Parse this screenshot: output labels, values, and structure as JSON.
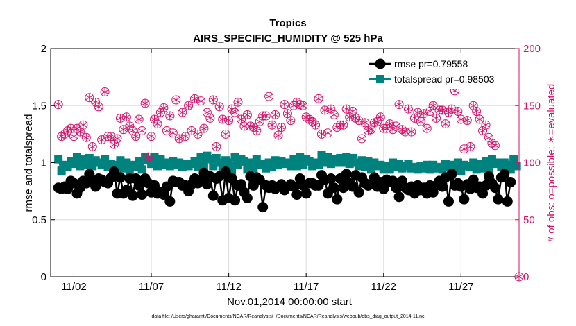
{
  "chart_data": {
    "type": "line",
    "title": "Tropics",
    "subtitle": "AIRS_SPECIFIC_HUMIDITY @ 525 hPa",
    "xlabel": "Nov.01,2014 00:00:00 start",
    "ylabel_left": "rmse and totalspread",
    "ylabel_right": "# of obs: o=possible; ∗=evaluated",
    "footnote": "data file: /Users/gharamti/Documents/NCAR/Reanalysis/~/Documents/NCAR/Reanalysis/webpub/obs_diag_output_2014-11.nc",
    "xlim": [
      0.5,
      30.75
    ],
    "ylim_left": [
      0,
      2
    ],
    "ylim_right": [
      0,
      200
    ],
    "x_ticks": [
      2,
      7,
      12,
      17,
      22,
      27
    ],
    "x_tick_labels": [
      "11/02",
      "11/07",
      "11/12",
      "11/17",
      "11/22",
      "11/27"
    ],
    "y_left_ticks": [
      "0",
      "0.5",
      "1",
      "1.5",
      "2"
    ],
    "y_right_ticks": [
      "0",
      "50",
      "100",
      "150",
      "200"
    ],
    "colors": {
      "rmse": "#000000",
      "totalspread": "#00837e",
      "obs": "#d1136a",
      "grid": "#dcdcdc"
    },
    "series": [
      {
        "name": "rmse",
        "legend": "rmse pr=0.79558",
        "values": [
          0.78,
          0.77,
          0.79,
          0.77,
          0.84,
          0.82,
          0.73,
          0.78,
          0.84,
          0.82,
          0.9,
          0.83,
          0.79,
          0.86,
          0.85,
          0.83,
          0.82,
          0.87,
          0.92,
          0.73,
          0.87,
          0.73,
          0.76,
          0.86,
          0.71,
          0.86,
          0.8,
          0.72,
          0.86,
          0.82,
          0.74,
          0.8,
          0.73,
          0.74,
          0.72,
          0.79,
          0.66,
          0.84,
          0.83,
          0.83,
          0.8,
          0.8,
          0.75,
          0.81,
          0.86,
          0.82,
          0.85,
          0.91,
          0.81,
          0.88,
          0.71,
          0.86,
          0.88,
          0.67,
          0.92,
          0.69,
          0.86,
          0.67,
          0.8,
          0.81,
          0.74,
          0.69,
          0.88,
          0.8,
          0.87,
          0.85,
          0.61,
          0.8,
          0.78,
          0.8,
          0.77,
          0.79,
          0.81,
          0.76,
          0.79,
          0.81,
          0.79,
          0.72,
          0.86,
          0.8,
          0.73,
          0.82,
          0.82,
          0.8,
          0.8,
          0.89,
          0.85,
          0.73,
          0.86,
          0.78,
          0.68,
          0.86,
          0.78,
          0.9,
          0.82,
          0.79,
          0.89,
          0.74,
          0.87,
          0.82,
          0.8,
          0.81,
          0.87,
          0.79,
          0.83,
          0.77,
          0.85,
          0.83,
          0.84,
          0.78,
          0.7,
          0.84,
          0.78,
          0.76,
          0.79,
          0.73,
          0.8,
          0.76,
          0.78,
          0.73,
          0.8,
          0.74,
          0.8,
          0.84,
          0.79,
          0.87,
          0.66,
          0.9,
          0.8,
          0.82,
          0.79,
          0.68,
          0.81,
          0.77,
          0.85,
          0.78,
          0.79,
          0.73,
          0.8,
          0.88,
          0.82,
          0.78,
          0.68,
          0.87,
          0.9,
          0.66,
          0.83
        ]
      },
      {
        "name": "totalspread",
        "legend": "totalspread pr=0.98503",
        "values": [
          1.03,
          0.93,
          0.98,
          0.96,
          1.01,
          0.99,
          1.05,
          0.97,
          1.03,
          0.98,
          1.04,
          0.97,
          1.02,
          1.0,
          0.98,
          1.03,
          0.96,
          0.99,
          0.98,
          0.96,
          1.02,
          0.95,
          1.0,
          0.91,
          0.98,
          0.96,
          1.01,
          0.94,
          1.05,
          1.02,
          0.99,
          1.05,
          0.97,
          1.03,
          0.98,
          1.0,
          0.97,
          1.01,
          0.98,
          1.0,
          0.96,
          0.99,
          0.97,
          0.99,
          1.01,
          0.96,
          1.05,
          0.98,
          1.06,
          1.03,
          0.97,
          1.04,
          1.0,
          0.96,
          1.02,
          1.0,
          0.93,
          1.05,
          0.98,
          1.03,
          1.01,
          0.94,
          1.0,
          0.95,
          1.03,
          0.98,
          0.99,
          0.95,
          1.0,
          0.96,
          1.02,
          0.98,
          1.01,
          0.99,
          1.0,
          0.97,
          1.03,
          0.97,
          1.05,
          0.98,
          1.03,
          1.01,
          0.97,
          1.0,
          0.98,
          1.07,
          1.0,
          1.05,
          0.99,
          1.03,
          1.0,
          1.04,
          1.0,
          1.05,
          0.99,
          1.04,
          1.0,
          0.97,
          1.02,
          0.96,
          1.01,
          0.94,
          1.0,
          0.97,
          0.98,
          0.94,
          0.97,
          0.94,
          1.0,
          0.96,
          0.99,
          0.95,
          0.97,
          0.99,
          0.95,
          0.96,
          0.94,
          0.97,
          0.95,
          0.98,
          0.94,
          0.98,
          0.95,
          0.96,
          0.94,
          0.99,
          0.96,
          0.98,
          0.95,
          1.0,
          0.93,
          0.98,
          0.97,
          0.96,
          1.0,
          0.94,
          0.99,
          0.95,
          1.01,
          0.95,
          1.03,
          0.99,
          1.0,
          0.96,
          1.0,
          0.98,
          0.94,
          1.03,
          0.97
        ]
      },
      {
        "name": "obs_possible",
        "legend": "",
        "values": [
          151,
          123,
          125,
          128,
          130,
          123,
          130,
          127,
          133,
          122,
          157,
          114,
          153,
          149,
          120,
          162,
          123,
          123,
          116,
          121,
          139,
          129,
          140,
          132,
          128,
          123,
          138,
          128,
          152,
          105,
          123,
          138,
          134,
          144,
          148,
          128,
          141,
          126,
          155,
          121,
          144,
          123,
          150,
          128,
          156,
          125,
          154,
          130,
          144,
          139,
          155,
          114,
          149,
          138,
          125,
          137,
          147,
          144,
          153,
          138,
          132,
          142,
          132,
          131,
          128,
          136,
          141,
          141,
          158,
          133,
          142,
          124,
          131,
          151,
          143,
          137,
          150,
          153,
          151,
          150,
          140,
          138,
          136,
          133,
          156,
          125,
          146,
          126,
          147,
          142,
          131,
          133,
          133,
          147,
          140,
          145,
          139,
          137,
          121,
          135,
          128,
          129,
          135,
          136,
          140,
          130,
          130,
          134,
          129,
          132,
          151,
          129,
          127,
          147,
          127,
          139,
          144,
          136,
          143,
          130,
          145,
          150,
          139,
          146,
          146,
          134,
          144,
          147,
          163,
          145,
          138,
          112,
          137,
          114,
          150,
          145,
          138,
          128,
          133,
          122,
          117,
          115
        ]
      },
      {
        "name": "obs_evaluated",
        "legend": "",
        "values": [
          151,
          123,
          125,
          128,
          130,
          123,
          130,
          127,
          133,
          122,
          157,
          114,
          153,
          149,
          120,
          162,
          123,
          123,
          116,
          121,
          139,
          129,
          140,
          132,
          128,
          123,
          138,
          128,
          152,
          105,
          123,
          138,
          134,
          144,
          148,
          128,
          141,
          126,
          155,
          121,
          144,
          123,
          150,
          128,
          156,
          125,
          154,
          130,
          144,
          139,
          155,
          114,
          149,
          138,
          125,
          137,
          147,
          144,
          153,
          138,
          132,
          142,
          132,
          131,
          128,
          136,
          141,
          141,
          158,
          133,
          142,
          124,
          131,
          151,
          143,
          137,
          150,
          153,
          151,
          150,
          140,
          138,
          136,
          133,
          156,
          125,
          146,
          126,
          147,
          142,
          131,
          133,
          133,
          147,
          140,
          145,
          139,
          137,
          121,
          135,
          128,
          129,
          135,
          136,
          140,
          130,
          130,
          134,
          129,
          132,
          151,
          129,
          127,
          147,
          127,
          139,
          144,
          136,
          143,
          130,
          145,
          150,
          139,
          146,
          146,
          134,
          144,
          147,
          163,
          145,
          138,
          112,
          137,
          114,
          150,
          145,
          138,
          128,
          133,
          122,
          117,
          115
        ]
      }
    ],
    "legend_position": "top-right"
  }
}
